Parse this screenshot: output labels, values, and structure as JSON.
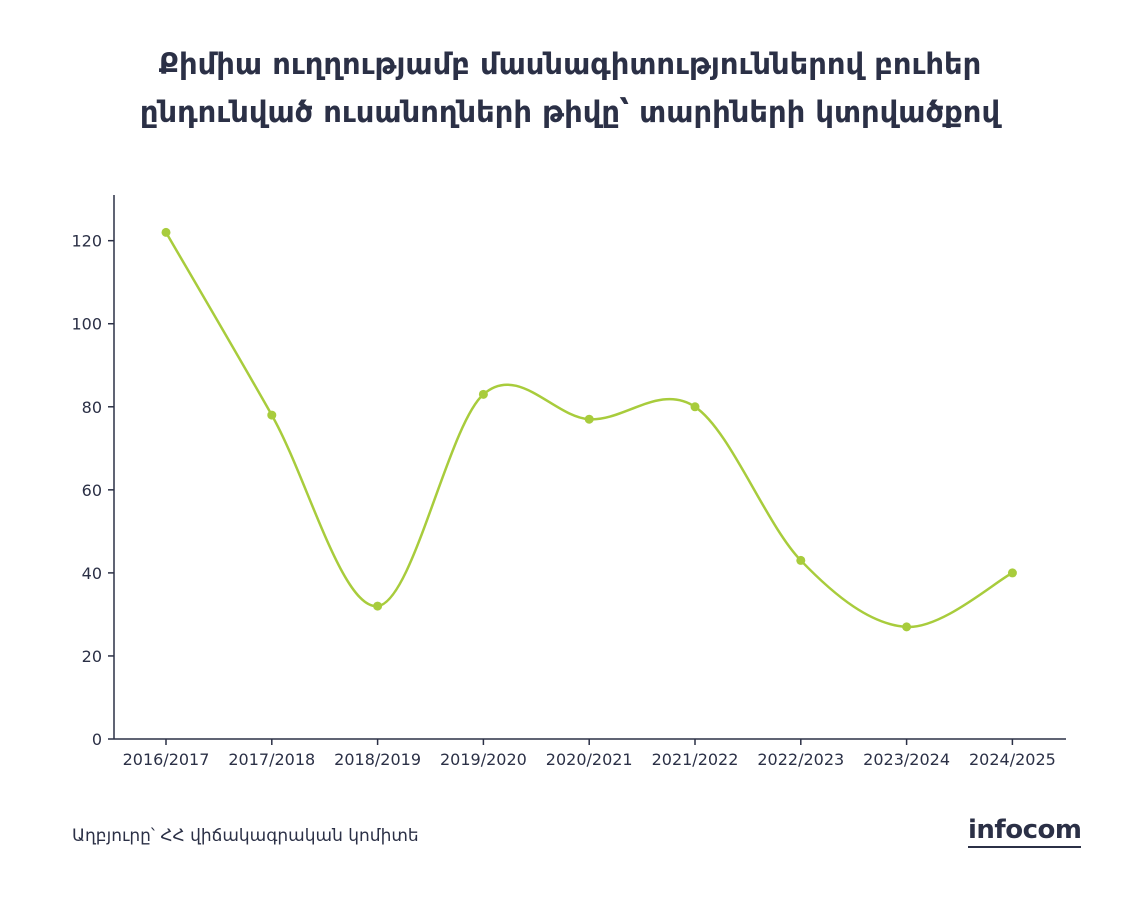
{
  "title_line1": "Քիմիա ուղղությամբ մասնագիտություններով բուհեր",
  "title_line2": "ընդունված ուսանողների թիվը՝ տարիների կտրվածքով",
  "source": "Աղբյուրը՝ ՀՀ վիճակագրական կոմիտե",
  "logo": "infocom",
  "colors": {
    "line": "#a8cc3c",
    "axis": "#2b3046",
    "text": "#2b3046"
  },
  "chart_data": {
    "type": "line",
    "categories": [
      "2016/2017",
      "2017/2018",
      "2018/2019",
      "2019/2020",
      "2020/2021",
      "2021/2022",
      "2022/2023",
      "2023/2024",
      "2024/2025"
    ],
    "values": [
      122,
      78,
      32,
      83,
      77,
      80,
      43,
      27,
      40
    ],
    "yticks": [
      0,
      20,
      40,
      60,
      80,
      100,
      120
    ],
    "ylim": [
      0,
      131
    ],
    "smooth": true,
    "grid": false,
    "xlabel": "",
    "ylabel": ""
  }
}
